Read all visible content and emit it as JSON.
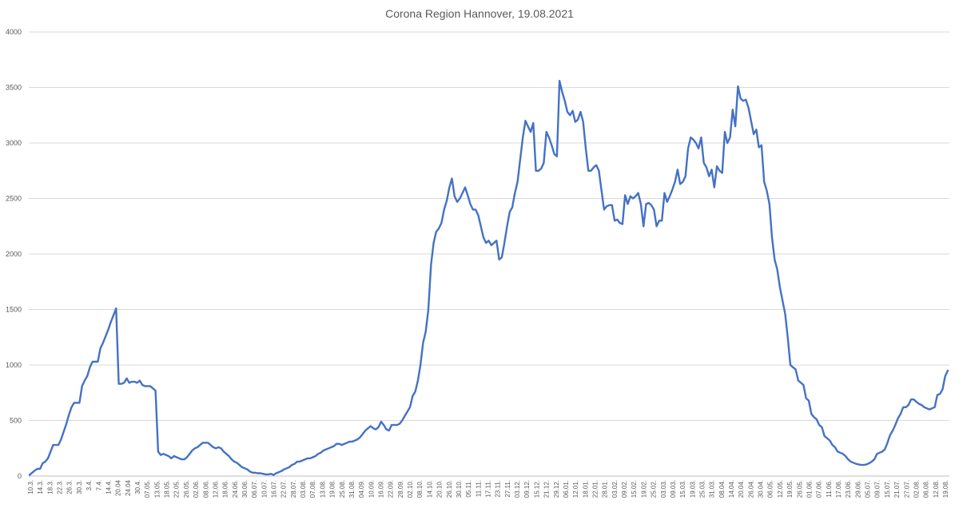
{
  "chart_data": {
    "type": "line",
    "title": "Corona Region Hannover, 19.08.2021",
    "xlabel": "",
    "ylabel": "",
    "ylim": [
      0,
      4000
    ],
    "yticks": [
      0,
      500,
      1000,
      1500,
      2000,
      2500,
      3000,
      3500,
      4000
    ],
    "grid": true,
    "legend": "none",
    "color": "#4472c4",
    "xtick_labels": [
      "10.3.",
      "14.3.",
      "18.3.",
      "22.3.",
      "26.3.",
      "30.3.",
      "3.4.",
      "7.4.",
      "14.4.",
      "20.04",
      "24.04",
      "30.4.",
      "07.05.",
      "13.05.",
      "18.05.",
      "22.05.",
      "26.05.",
      "02.06.",
      "08.06.",
      "12.06.",
      "18.06.",
      "24.06.",
      "30.06.",
      "06.07.",
      "10.07.",
      "16.07.",
      "22.07.",
      "28.07.",
      "03.08.",
      "07.08.",
      "13.08.",
      "19.08.",
      "25.08.",
      "31.08.",
      "04.09.",
      "10.09.",
      "16.09.",
      "22.09.",
      "28.09.",
      "02.10.",
      "08.10.",
      "14.10.",
      "20.10.",
      "26.10.",
      "30.10.",
      "05.11.",
      "11.11.",
      "17.11.",
      "23.11.",
      "27.11.",
      "03.12.",
      "09.12.",
      "15.12.",
      "21.12.",
      "29.12.",
      "06.01.",
      "12.01.",
      "18.01.",
      "22.01.",
      "28.01.",
      "03.02.",
      "09.02.",
      "15.02.",
      "19.02.",
      "25.02.",
      "03.03.",
      "09.03.",
      "15.03.",
      "19.03.",
      "25.03.",
      "31.03.",
      "08.04.",
      "14.04.",
      "20.04.",
      "26.04.",
      "30.04.",
      "06.05.",
      "12.05.",
      "19.05.",
      "26.05.",
      "01.06.",
      "07.06.",
      "11.06.",
      "17.06.",
      "23.06.",
      "29.06.",
      "05.07.",
      "09.07.",
      "15.07.",
      "21.07.",
      "27.07.",
      "02.08.",
      "06.08.",
      "12.08.",
      "19.08."
    ],
    "series": [
      {
        "values": [
          10,
          30,
          50,
          65,
          65,
          115,
          130,
          160,
          220,
          280,
          280,
          280,
          330,
          400,
          470,
          550,
          620,
          660,
          660,
          660,
          810,
          860,
          900,
          980,
          1030,
          1030,
          1030,
          1150,
          1200,
          1260,
          1320,
          1390,
          1450,
          1510,
          830,
          830,
          840,
          880,
          840,
          850,
          850,
          840,
          860,
          820,
          810,
          810,
          810,
          790,
          770,
          220,
          190,
          200,
          190,
          180,
          160,
          180,
          170,
          160,
          150,
          150,
          170,
          200,
          230,
          250,
          260,
          280,
          300,
          300,
          300,
          280,
          260,
          250,
          260,
          250,
          220,
          200,
          180,
          150,
          130,
          120,
          100,
          80,
          70,
          60,
          40,
          30,
          30,
          25,
          25,
          20,
          15,
          15,
          20,
          10,
          25,
          35,
          45,
          60,
          70,
          80,
          100,
          110,
          130,
          130,
          140,
          150,
          160,
          160,
          170,
          180,
          200,
          210,
          230,
          240,
          250,
          260,
          270,
          290,
          290,
          280,
          290,
          300,
          310,
          310,
          320,
          330,
          350,
          380,
          410,
          430,
          450,
          430,
          420,
          440,
          490,
          460,
          420,
          410,
          460,
          460,
          460,
          470,
          500,
          540,
          580,
          620,
          720,
          760,
          860,
          1000,
          1200,
          1300,
          1500,
          1900,
          2100,
          2200,
          2230,
          2280,
          2400,
          2480,
          2600,
          2680,
          2520,
          2470,
          2500,
          2550,
          2600,
          2530,
          2450,
          2400,
          2400,
          2350,
          2250,
          2150,
          2100,
          2120,
          2080,
          2100,
          2120,
          1950,
          1970,
          2100,
          2250,
          2380,
          2420,
          2550,
          2650,
          2850,
          3050,
          3200,
          3150,
          3100,
          3180,
          2750,
          2750,
          2770,
          2820,
          3100,
          3050,
          2980,
          2900,
          2880,
          3560,
          3460,
          3380,
          3280,
          3250,
          3290,
          3190,
          3210,
          3280,
          3190,
          2950,
          2750,
          2750,
          2780,
          2800,
          2750,
          2570,
          2400,
          2430,
          2440,
          2440,
          2300,
          2310,
          2280,
          2270,
          2530,
          2450,
          2520,
          2500,
          2520,
          2550,
          2450,
          2250,
          2450,
          2460,
          2440,
          2400,
          2250,
          2300,
          2300,
          2550,
          2470,
          2520,
          2580,
          2650,
          2760,
          2630,
          2650,
          2700,
          2950,
          3050,
          3030,
          3000,
          2950,
          3050,
          2820,
          2780,
          2700,
          2760,
          2600,
          2790,
          2750,
          2730,
          3100,
          3000,
          3050,
          3300,
          3150,
          3510,
          3400,
          3380,
          3390,
          3320,
          3200,
          3080,
          3120,
          2960,
          2980,
          2650,
          2570,
          2450,
          2150,
          1950,
          1860,
          1700,
          1580,
          1460,
          1250,
          1000,
          980,
          960,
          860,
          840,
          820,
          700,
          680,
          560,
          530,
          510,
          460,
          440,
          360,
          340,
          320,
          280,
          260,
          220,
          210,
          200,
          180,
          150,
          130,
          120,
          110,
          105,
          100,
          100,
          105,
          115,
          130,
          150,
          200,
          210,
          220,
          240,
          300,
          370,
          410,
          460,
          520,
          560,
          620,
          620,
          640,
          690,
          690,
          670,
          650,
          640,
          620,
          610,
          600,
          610,
          620,
          730,
          740,
          780,
          900,
          950
        ]
      }
    ]
  }
}
